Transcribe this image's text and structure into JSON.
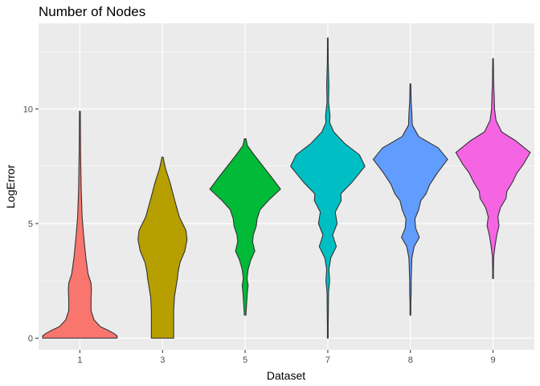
{
  "chart_data": {
    "type": "violin",
    "title": "Number of Nodes",
    "xlabel": "Dataset",
    "ylabel": "LogError",
    "categories": [
      "1",
      "3",
      "5",
      "7",
      "8",
      "9"
    ],
    "y_ticks": [
      0,
      5,
      10
    ],
    "y_tick_labels": [
      "0",
      "5",
      "10"
    ],
    "ylim": [
      -0.4,
      13.5
    ],
    "grid": true,
    "legend": "none",
    "colors": [
      "#F8766D",
      "#B79F00",
      "#00BA38",
      "#00BFC4",
      "#619CFF",
      "#F564E3"
    ],
    "panel_background": "#EBEBEB",
    "grid_color": "#FFFFFF",
    "violins": [
      {
        "category": "1",
        "y": [
          0.0,
          0.1,
          0.2,
          0.35,
          0.5,
          0.8,
          1.2,
          1.7,
          2.1,
          2.4,
          2.8,
          3.5,
          4.5,
          5.3,
          6.5,
          8.0,
          9.0,
          9.9
        ],
        "width": [
          1.0,
          1.0,
          0.92,
          0.75,
          0.55,
          0.38,
          0.3,
          0.3,
          0.31,
          0.3,
          0.22,
          0.16,
          0.1,
          0.06,
          0.035,
          0.02,
          0.015,
          0.01
        ]
      },
      {
        "category": "3",
        "y": [
          0.0,
          0.6,
          1.2,
          1.8,
          2.3,
          2.6,
          2.9,
          3.3,
          3.8,
          4.3,
          4.7,
          5.3,
          6.0,
          6.8,
          7.4,
          7.9
        ],
        "width": [
          0.3,
          0.3,
          0.3,
          0.32,
          0.37,
          0.4,
          0.42,
          0.47,
          0.6,
          0.66,
          0.63,
          0.45,
          0.33,
          0.2,
          0.08,
          0.015
        ]
      },
      {
        "category": "5",
        "y": [
          1.0,
          1.5,
          2.0,
          2.3,
          2.6,
          3.0,
          3.4,
          3.8,
          4.2,
          4.5,
          4.9,
          5.2,
          5.6,
          6.0,
          6.5,
          7.0,
          7.5,
          8.0,
          8.4,
          8.7
        ],
        "width": [
          0.02,
          0.04,
          0.06,
          0.08,
          0.05,
          0.08,
          0.15,
          0.26,
          0.2,
          0.22,
          0.3,
          0.32,
          0.4,
          0.62,
          0.95,
          0.72,
          0.48,
          0.24,
          0.06,
          0.02
        ]
      },
      {
        "category": "7",
        "y": [
          0.0,
          0.5,
          1.2,
          2.0,
          2.5,
          3.0,
          3.5,
          4.0,
          4.5,
          5.0,
          5.5,
          6.0,
          6.3,
          6.8,
          7.5,
          8.0,
          8.5,
          9.0,
          9.4,
          9.7,
          10.3,
          11.0,
          12.0,
          13.1
        ],
        "width": [
          0.01,
          0.01,
          0.015,
          0.02,
          0.05,
          0.03,
          0.08,
          0.23,
          0.13,
          0.25,
          0.2,
          0.36,
          0.35,
          0.65,
          1.0,
          0.85,
          0.45,
          0.16,
          0.05,
          0.06,
          0.02,
          0.03,
          0.012,
          0.008
        ]
      },
      {
        "category": "8",
        "y": [
          1.0,
          1.5,
          2.0,
          2.5,
          3.0,
          3.5,
          4.0,
          4.4,
          4.8,
          5.2,
          5.6,
          6.0,
          6.3,
          6.7,
          7.2,
          7.8,
          8.3,
          8.8,
          9.3,
          9.8,
          10.3,
          11.1
        ],
        "width": [
          0.01,
          0.01,
          0.02,
          0.02,
          0.03,
          0.04,
          0.1,
          0.24,
          0.14,
          0.12,
          0.22,
          0.28,
          0.42,
          0.52,
          0.72,
          1.0,
          0.75,
          0.22,
          0.05,
          0.04,
          0.02,
          0.01
        ]
      },
      {
        "category": "9",
        "y": [
          2.6,
          3.0,
          3.6,
          4.1,
          4.5,
          4.9,
          5.3,
          5.7,
          6.1,
          6.4,
          6.8,
          7.2,
          7.6,
          8.1,
          8.6,
          9.0,
          9.5,
          10.0,
          10.6,
          11.2,
          12.2
        ],
        "width": [
          0.01,
          0.01,
          0.02,
          0.06,
          0.1,
          0.16,
          0.13,
          0.2,
          0.35,
          0.37,
          0.52,
          0.64,
          0.82,
          1.0,
          0.62,
          0.23,
          0.08,
          0.04,
          0.03,
          0.015,
          0.008
        ]
      }
    ]
  }
}
